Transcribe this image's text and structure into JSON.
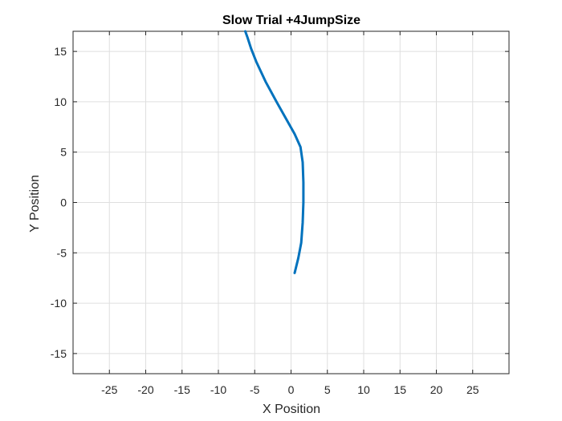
{
  "chart_data": {
    "type": "line",
    "title": "Slow Trial +4JumpSize",
    "xlabel": "X Position",
    "ylabel": "Y Position",
    "xlim": [
      -30,
      30
    ],
    "ylim": [
      -17,
      17
    ],
    "xticks": [
      -25,
      -20,
      -15,
      -10,
      -5,
      0,
      5,
      10,
      15,
      20,
      25
    ],
    "yticks": [
      -15,
      -10,
      -5,
      0,
      5,
      10,
      15
    ],
    "grid": true,
    "series": [
      {
        "color": "#0072BD",
        "x": [
          0.5,
          1.0,
          1.4,
          1.6,
          1.7,
          1.7,
          1.6,
          1.3,
          0.5,
          -0.6,
          -2.0,
          -3.5,
          -4.8,
          -5.5,
          -6.0,
          -6.3
        ],
        "y": [
          -7.0,
          -5.5,
          -4.0,
          -2.0,
          0.0,
          2.0,
          4.0,
          5.5,
          6.8,
          8.2,
          10.0,
          12.0,
          14.0,
          15.3,
          16.4,
          17.0
        ]
      }
    ]
  }
}
